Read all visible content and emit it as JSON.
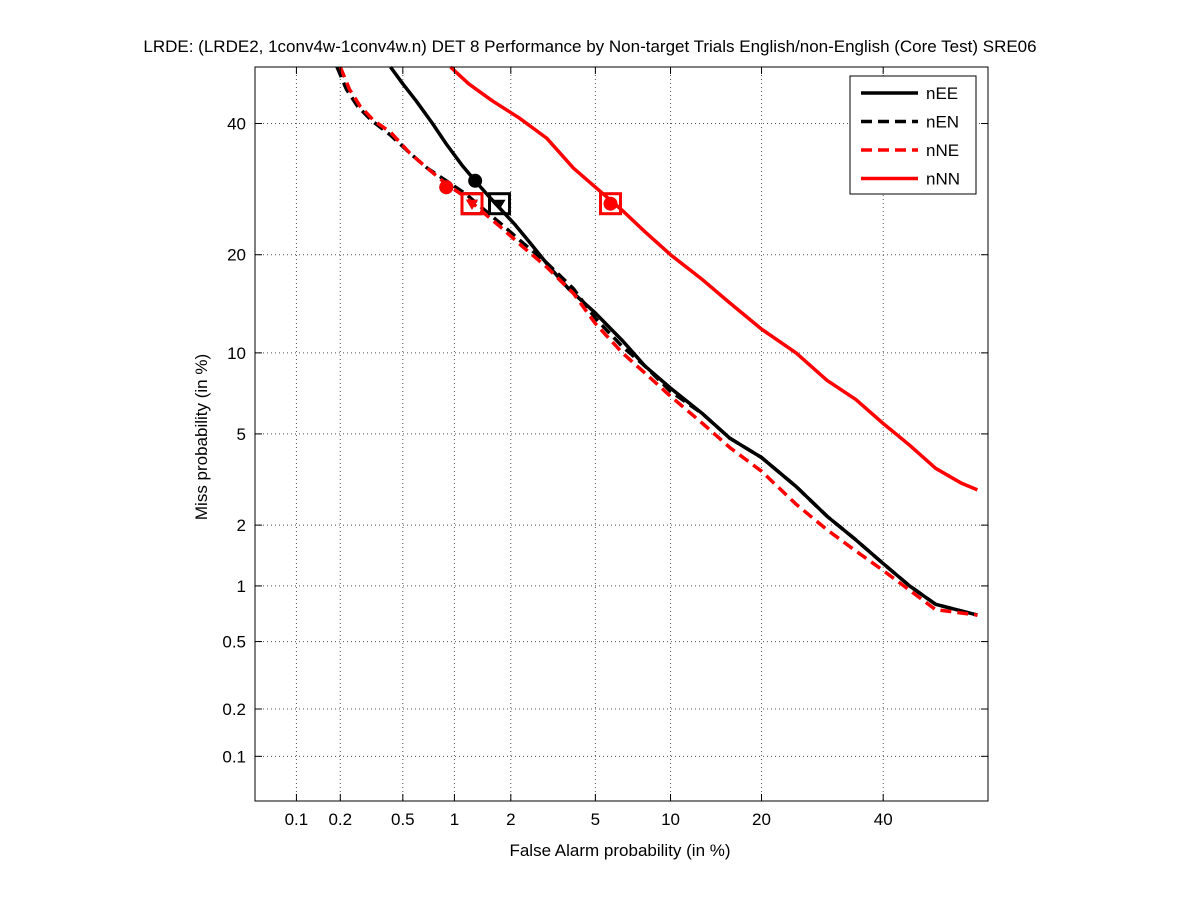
{
  "chart_data": {
    "type": "line",
    "title": "LRDE: (LRDE2, 1conv4w-1conv4w.n) DET 8 Performance by Non-target Trials English/non-English (Core Test) SRE06",
    "xlabel": "False Alarm probability (in %)",
    "ylabel": "Miss probability (in %)",
    "x_scale": "probit",
    "y_scale": "probit",
    "xlim": [
      0.05,
      60
    ],
    "ylim": [
      0.05,
      50
    ],
    "x_ticks": [
      {
        "value": 0.1,
        "label": "0.1"
      },
      {
        "value": 0.2,
        "label": "0.2"
      },
      {
        "value": 0.5,
        "label": "0.5"
      },
      {
        "value": 1,
        "label": "1"
      },
      {
        "value": 2,
        "label": "2"
      },
      {
        "value": 5,
        "label": "5"
      },
      {
        "value": 10,
        "label": "10"
      },
      {
        "value": 20,
        "label": "20"
      },
      {
        "value": 40,
        "label": "40"
      }
    ],
    "y_ticks": [
      {
        "value": 0.1,
        "label": "0.1"
      },
      {
        "value": 0.2,
        "label": "0.2"
      },
      {
        "value": 0.5,
        "label": "0.5"
      },
      {
        "value": 1,
        "label": "1"
      },
      {
        "value": 2,
        "label": "2"
      },
      {
        "value": 5,
        "label": "5"
      },
      {
        "value": 10,
        "label": "10"
      },
      {
        "value": 20,
        "label": "20"
      },
      {
        "value": 40,
        "label": "40"
      }
    ],
    "grid": true,
    "legend_position": "top-right",
    "series": [
      {
        "name": "nEE",
        "color": "#000000",
        "line_style": "solid",
        "points": [
          [
            0.42,
            50
          ],
          [
            0.5,
            47
          ],
          [
            0.6,
            44
          ],
          [
            0.75,
            40
          ],
          [
            0.9,
            36.5
          ],
          [
            1.1,
            33
          ],
          [
            1.3,
            30.5
          ],
          [
            1.55,
            28
          ],
          [
            1.8,
            26
          ],
          [
            2.1,
            24
          ],
          [
            2.5,
            21.5
          ],
          [
            3.1,
            18.5
          ],
          [
            3.8,
            16
          ],
          [
            5,
            13.5
          ],
          [
            6.5,
            11
          ],
          [
            8,
            9
          ],
          [
            10,
            7.5
          ],
          [
            13,
            6
          ],
          [
            16,
            4.8
          ],
          [
            20,
            4
          ],
          [
            25,
            3
          ],
          [
            30,
            2.2
          ],
          [
            35,
            1.7
          ],
          [
            40,
            1.3
          ],
          [
            45,
            1.0
          ],
          [
            50,
            0.8
          ],
          [
            58,
            0.7
          ]
        ],
        "min_dcf": [
          1.3,
          30.5
        ],
        "act_dcf": [
          1.75,
          27
        ]
      },
      {
        "name": "nEN",
        "color": "#000000",
        "line_style": "dashed",
        "points": [
          [
            0.19,
            50
          ],
          [
            0.22,
            46
          ],
          [
            0.26,
            43
          ],
          [
            0.32,
            40.5
          ],
          [
            0.42,
            38
          ],
          [
            0.55,
            35
          ],
          [
            0.7,
            32.5
          ],
          [
            0.9,
            30.5
          ],
          [
            1.15,
            28.5
          ],
          [
            1.4,
            26.5
          ],
          [
            1.8,
            24
          ],
          [
            2.3,
            21.5
          ],
          [
            3,
            19
          ],
          [
            4,
            16
          ],
          [
            5,
            13
          ],
          [
            6.5,
            10.5
          ],
          [
            8,
            9
          ],
          [
            10,
            7.3
          ],
          [
            13,
            6
          ],
          [
            16,
            4.8
          ],
          [
            20,
            4
          ],
          [
            25,
            3
          ],
          [
            30,
            2.2
          ],
          [
            35,
            1.7
          ],
          [
            40,
            1.3
          ],
          [
            45,
            1.0
          ],
          [
            50,
            0.8
          ],
          [
            58,
            0.7
          ]
        ],
        "min_dcf": [
          0.9,
          29.5
        ],
        "act_dcf": [
          1.25,
          27
        ]
      },
      {
        "name": "nNE",
        "color": "#ff0000",
        "line_style": "dashed",
        "points": [
          [
            0.2,
            50
          ],
          [
            0.23,
            46
          ],
          [
            0.27,
            43
          ],
          [
            0.33,
            40.5
          ],
          [
            0.42,
            38.5
          ],
          [
            0.55,
            35
          ],
          [
            0.7,
            32.5
          ],
          [
            0.9,
            30
          ],
          [
            1.15,
            28
          ],
          [
            1.4,
            26
          ],
          [
            1.8,
            23.5
          ],
          [
            2.3,
            21
          ],
          [
            3,
            18.5
          ],
          [
            4,
            15.5
          ],
          [
            5,
            12.5
          ],
          [
            6.5,
            10
          ],
          [
            8,
            8.5
          ],
          [
            10,
            7
          ],
          [
            13,
            5.5
          ],
          [
            16,
            4.4
          ],
          [
            20,
            3.5
          ],
          [
            25,
            2.5
          ],
          [
            30,
            1.9
          ],
          [
            35,
            1.5
          ],
          [
            40,
            1.2
          ],
          [
            45,
            0.95
          ],
          [
            50,
            0.75
          ],
          [
            58,
            0.7
          ]
        ],
        "min_dcf": [
          0.9,
          29.5
        ],
        "act_dcf": [
          1.25,
          27
        ]
      },
      {
        "name": "nNN",
        "color": "#ff0000",
        "line_style": "solid",
        "points": [
          [
            0.95,
            50
          ],
          [
            1.2,
            47
          ],
          [
            1.6,
            44
          ],
          [
            2.2,
            41
          ],
          [
            3,
            37.5
          ],
          [
            4,
            32.5
          ],
          [
            5,
            29.5
          ],
          [
            6.5,
            26
          ],
          [
            8,
            23
          ],
          [
            10,
            20
          ],
          [
            13,
            17
          ],
          [
            16,
            14.5
          ],
          [
            20,
            12
          ],
          [
            25,
            10
          ],
          [
            30,
            8
          ],
          [
            35,
            6.8
          ],
          [
            40,
            5.5
          ],
          [
            45,
            4.5
          ],
          [
            50,
            3.6
          ],
          [
            55,
            3.1
          ],
          [
            58,
            2.9
          ]
        ],
        "min_dcf": [
          5.8,
          27
        ],
        "act_dcf": [
          5.8,
          27
        ]
      }
    ]
  }
}
